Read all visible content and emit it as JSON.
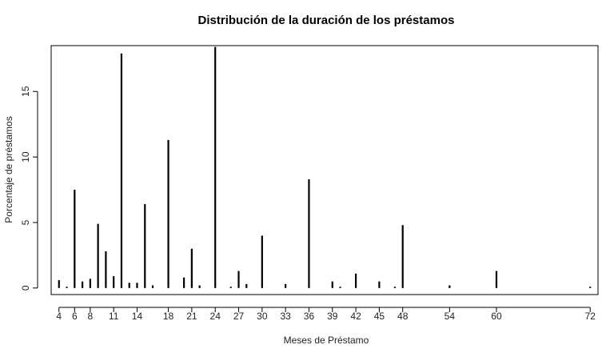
{
  "chart_data": {
    "type": "bar",
    "title": "Distribución de la duración de los préstamos",
    "xlabel": "Meses de Préstamo",
    "ylabel": "Porcentaje de préstamos",
    "xlim": [
      3,
      73
    ],
    "ylim": [
      -0.5,
      18.5
    ],
    "x_ticks": [
      4,
      6,
      8,
      11,
      14,
      18,
      21,
      24,
      27,
      30,
      33,
      36,
      39,
      42,
      45,
      48,
      54,
      60,
      72
    ],
    "y_ticks": [
      0,
      5,
      10,
      15
    ],
    "grid": false,
    "bar_color": "#000000",
    "x": [
      4,
      5,
      6,
      7,
      8,
      9,
      10,
      11,
      12,
      13,
      14,
      15,
      16,
      18,
      20,
      21,
      22,
      24,
      26,
      27,
      28,
      30,
      33,
      36,
      39,
      40,
      42,
      45,
      47,
      48,
      54,
      60,
      72
    ],
    "values": [
      0.6,
      0.1,
      7.5,
      0.5,
      0.7,
      4.9,
      2.8,
      0.9,
      17.9,
      0.4,
      0.4,
      6.4,
      0.2,
      11.3,
      0.8,
      3.0,
      0.2,
      18.4,
      0.1,
      1.3,
      0.3,
      4.0,
      0.3,
      8.3,
      0.5,
      0.1,
      1.1,
      0.5,
      0.1,
      4.8,
      0.2,
      1.3,
      0.1
    ]
  }
}
